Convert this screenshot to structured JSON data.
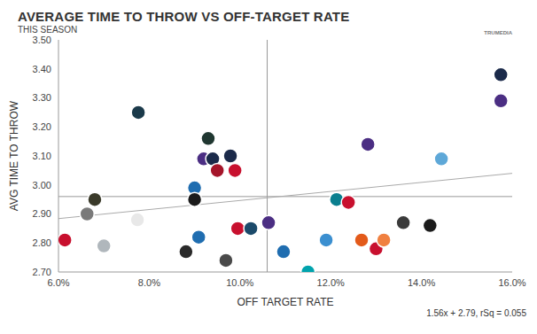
{
  "chart_data": {
    "type": "scatter",
    "title": "AVERAGE TIME TO THROW VS OFF-TARGET RATE",
    "subtitle": "THIS SEASON",
    "source": "TRUMEDIA",
    "x_label": "OFF TARGET RATE",
    "y_label": "AVG TIME TO THROW",
    "x": [
      15.75,
      15.75,
      7.76,
      9.3,
      12.82,
      9.79,
      14.44,
      9.2,
      9.4,
      9.5,
      9.89,
      9.0,
      9.0,
      6.8,
      12.13,
      12.39,
      6.63,
      7.74,
      10.63,
      9.95,
      10.24,
      13.6,
      14.19,
      6.14,
      7.0,
      9.09,
      8.81,
      10.96,
      11.9,
      12.68,
      13.0,
      13.17,
      9.69,
      11.5
    ],
    "values": [
      3.38,
      3.29,
      3.25,
      3.16,
      3.14,
      3.1,
      3.09,
      3.09,
      3.09,
      3.05,
      3.05,
      2.99,
      2.95,
      2.95,
      2.95,
      2.94,
      2.9,
      2.88,
      2.87,
      2.85,
      2.85,
      2.87,
      2.86,
      2.81,
      2.79,
      2.82,
      2.77,
      2.77,
      2.81,
      2.81,
      2.78,
      2.81,
      2.74,
      2.7
    ],
    "colors": [
      "#1b2a4a",
      "#4b2e83",
      "#1b3a4a",
      "#203731",
      "#4b2e83",
      "#1b2a4a",
      "#5ea8d8",
      "#4b2e83",
      "#1b2a4a",
      "#a5152a",
      "#c8102e",
      "#1f6db0",
      "#1b1b1b",
      "#3a3a2a",
      "#0a7f8f",
      "#c8102e",
      "#7a7a7a",
      "#e8e8e8",
      "#4b2e83",
      "#c8102e",
      "#1b4a6a",
      "#3a3a3a",
      "#1b1b1b",
      "#c8102e",
      "#b0b7bc",
      "#1f6db0",
      "#2a2a2a",
      "#1f6db0",
      "#3b8fd0",
      "#e35a1a",
      "#c8102e",
      "#f08040",
      "#4a4a4a",
      "#00a3ad"
    ],
    "xlim": [
      6,
      16
    ],
    "ylim": [
      2.7,
      3.5
    ],
    "xticks": [
      {
        "value": 6,
        "label": "6.0%"
      },
      {
        "value": 8,
        "label": "8.0%"
      },
      {
        "value": 10,
        "label": "10.0%"
      },
      {
        "value": 12,
        "label": "12.0%"
      },
      {
        "value": 14,
        "label": "14.0%"
      },
      {
        "value": 16,
        "label": "16.0%"
      }
    ],
    "yticks": [
      {
        "value": 2.7,
        "label": "2.70"
      },
      {
        "value": 2.8,
        "label": "2.80"
      },
      {
        "value": 2.9,
        "label": "2.90"
      },
      {
        "value": 3.0,
        "label": "3.00"
      },
      {
        "value": 3.1,
        "label": "3.10"
      },
      {
        "value": 3.2,
        "label": "3.20"
      },
      {
        "value": 3.3,
        "label": "3.30"
      },
      {
        "value": 3.4,
        "label": "3.40"
      },
      {
        "value": 3.5,
        "label": "3.50"
      }
    ],
    "reference_lines": {
      "x": 10.6,
      "y": 2.96
    },
    "trend_line": {
      "x": [
        6,
        16
      ],
      "y": [
        2.884,
        3.04
      ]
    },
    "trend_label": "1.56x + 2.79, rSq = 0.055"
  }
}
